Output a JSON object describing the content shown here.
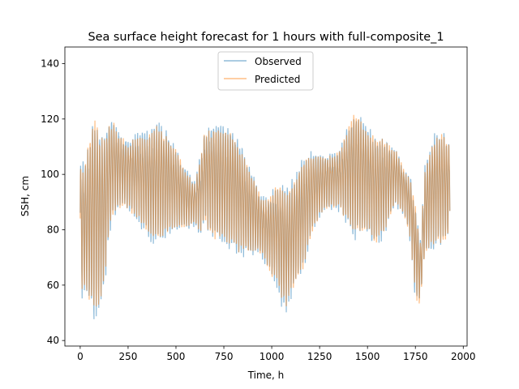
{
  "chart_data": {
    "type": "line",
    "title": "Sea surface height forecast for 1 hours with full-composite_1",
    "xlabel": "Time, h",
    "ylabel": "SSH, cm",
    "xlim": [
      -80,
      2020
    ],
    "ylim": [
      38,
      146
    ],
    "xticks": [
      0,
      250,
      500,
      750,
      1000,
      1250,
      1500,
      1750,
      2000
    ],
    "yticks": [
      40,
      60,
      80,
      100,
      120,
      140
    ],
    "grid": false,
    "legend_position": "top-center",
    "series_note": "signal is a semidiurnal tidal oscillation; values below are the envelope (mean and amplitude) the curve follows, sampled hourly",
    "period_h": 12.4,
    "envelope": {
      "x": [
        0,
        25,
        50,
        75,
        100,
        125,
        150,
        175,
        200,
        250,
        300,
        350,
        400,
        450,
        500,
        550,
        600,
        625,
        650,
        700,
        750,
        800,
        850,
        900,
        950,
        975,
        1000,
        1025,
        1050,
        1075,
        1100,
        1150,
        1200,
        1250,
        1300,
        1350,
        1400,
        1425,
        1450,
        1475,
        1500,
        1550,
        1600,
        1650,
        1700,
        1725,
        1750,
        1775,
        1800,
        1850,
        1900,
        1930
      ],
      "mean": [
        82,
        83,
        86,
        88,
        86,
        88,
        100,
        104,
        103,
        101,
        100,
        98,
        99,
        98,
        96,
        92,
        90,
        94,
        100,
        99,
        98,
        96,
        91,
        87,
        82,
        80,
        80,
        80,
        77,
        75,
        78,
        85,
        93,
        97,
        98,
        99,
        101,
        103,
        102,
        101,
        99,
        96,
        98,
        100,
        93,
        88,
        74,
        65,
        88,
        96,
        97,
        96
      ],
      "amplitude": [
        21,
        20,
        25,
        28,
        24,
        22,
        17,
        15,
        13,
        13,
        16,
        17,
        17,
        14,
        12,
        10,
        8,
        14,
        18,
        19,
        17,
        16,
        15,
        13,
        11,
        13,
        16,
        18,
        20,
        18,
        16,
        16,
        13,
        10,
        10,
        11,
        17,
        20,
        18,
        16,
        14,
        16,
        15,
        10,
        9,
        11,
        17,
        10,
        13,
        15,
        16,
        14
      ]
    },
    "series": [
      {
        "name": "Observed",
        "color": "#1f77b4"
      },
      {
        "name": "Predicted",
        "color": "#ff7f0e"
      }
    ]
  }
}
